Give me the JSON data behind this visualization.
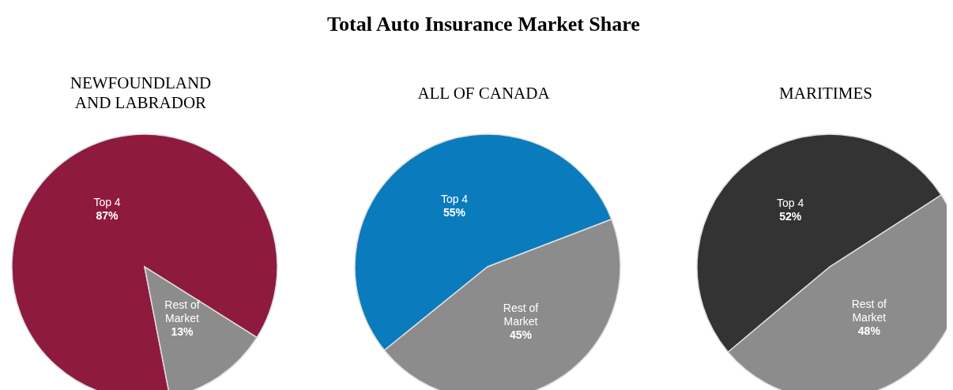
{
  "chart_data": [
    {
      "type": "pie",
      "subtitle": "NEWFOUNDLAND AND LABRADOR",
      "categories": [
        "Top 4",
        "Rest of Market"
      ],
      "values": [
        87,
        13
      ],
      "colors": [
        "#8e1a3e",
        "#8c8c8c"
      ],
      "value_labels": [
        "87%",
        "13%"
      ]
    },
    {
      "type": "pie",
      "title": "Total Auto Insurance Market Share",
      "subtitle": "ALL OF CANADA",
      "categories": [
        "Top 4",
        "Rest of Market"
      ],
      "values": [
        55,
        45
      ],
      "colors": [
        "#0a7bbd",
        "#8c8c8c"
      ],
      "value_labels": [
        "55%",
        "45%"
      ]
    },
    {
      "type": "pie",
      "subtitle": "MARITIMES",
      "categories": [
        "Top 4",
        "Rest of Market"
      ],
      "values": [
        52,
        48
      ],
      "colors": [
        "#333333",
        "#8c8c8c"
      ],
      "value_labels": [
        "52%",
        "48%"
      ]
    }
  ]
}
